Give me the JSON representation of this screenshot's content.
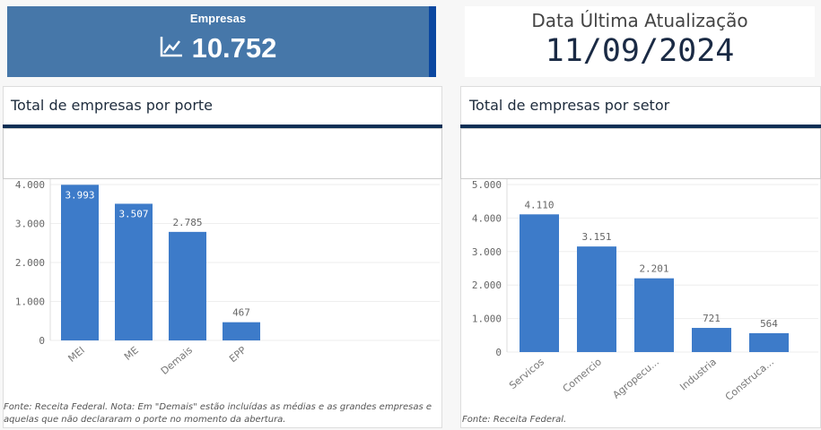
{
  "kpi": {
    "label": "Empresas",
    "value": "10.752",
    "icon": "line-chart-icon"
  },
  "date": {
    "label": "Data Última Atualização",
    "value": "11/09/2024"
  },
  "colors": {
    "bar": "#3d7bc9",
    "kpi_bg": "#4677a9",
    "accent": "#0d2f55"
  },
  "chart_data": [
    {
      "type": "bar",
      "title": "Total de empresas por porte",
      "categories": [
        "MEI",
        "ME",
        "Demais",
        "EPP"
      ],
      "values": [
        3993,
        3507,
        2785,
        467
      ],
      "labels": [
        "3.993",
        "3.507",
        "2.785",
        "467"
      ],
      "yticks": [
        "0",
        "1.000",
        "2.000",
        "3.000",
        "4.000"
      ],
      "ylim": [
        0,
        4000
      ],
      "note": "Fonte: Receita Federal. Nota: Em \"Demais\" estão incluídas as médias e as grandes empresas e aquelas que não declararam o porte no momento da abertura."
    },
    {
      "type": "bar",
      "title": "Total de empresas por setor",
      "categories": [
        "Servicos",
        "Comercio",
        "Agropecu...",
        "Industria",
        "Construca..."
      ],
      "values": [
        4110,
        3151,
        2201,
        721,
        564
      ],
      "labels": [
        "4.110",
        "3.151",
        "2.201",
        "721",
        "564"
      ],
      "yticks": [
        "0",
        "1.000",
        "2.000",
        "3.000",
        "4.000",
        "5.000"
      ],
      "ylim": [
        0,
        5000
      ],
      "note": "Fonte: Receita Federal."
    }
  ]
}
